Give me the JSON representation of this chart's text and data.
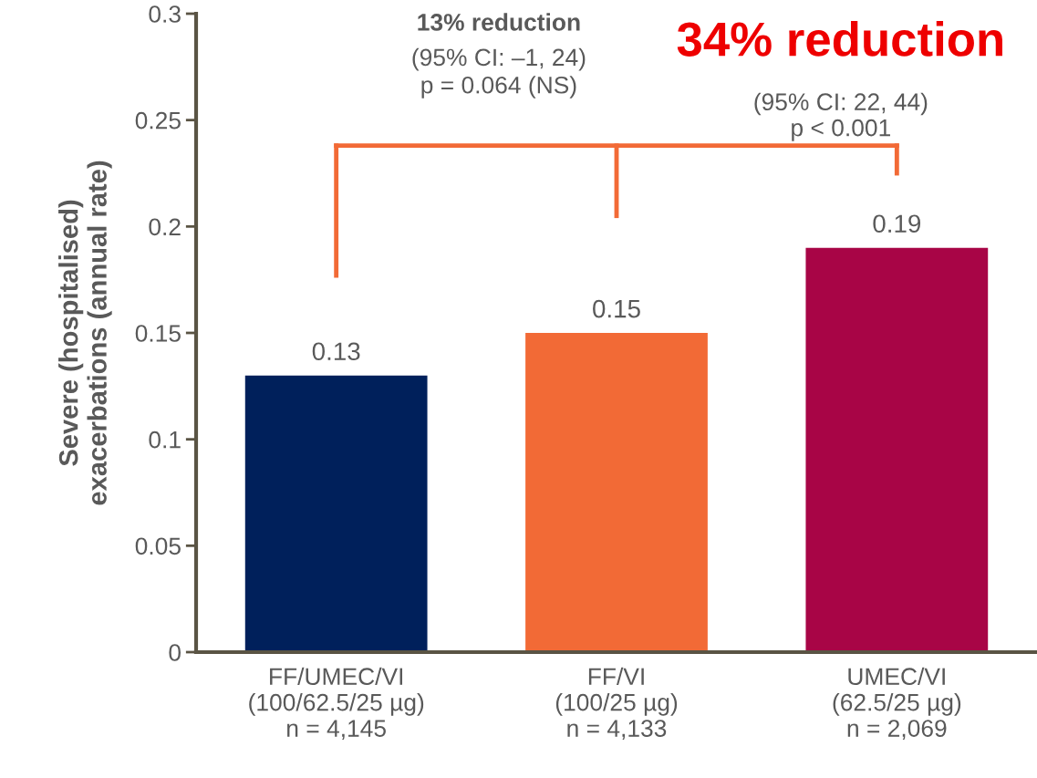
{
  "chart_data": {
    "type": "bar",
    "ylabel": "Severe (hospitalised)\nexacerbations (annual rate)",
    "categories": [
      "FF/UMEC/VI\n(100/62.5/25 µg)\nn = 4,145",
      "FF/VI\n(100/25 µg)\nn = 4,133",
      "UMEC/VI\n(62.5/25 µg)\nn = 2,069"
    ],
    "values": [
      0.13,
      0.15,
      0.19
    ],
    "colors": [
      "#00205b",
      "#f26a36",
      "#a80546"
    ],
    "data_labels": true,
    "ylim": [
      0,
      0.3
    ],
    "yticks": [
      0,
      0.05,
      0.1,
      0.15,
      0.2,
      0.25,
      0.3
    ],
    "grid": false,
    "annotations": [
      "13% reduction",
      "(95% CI: –1, 24)\np = 0.064 (NS)",
      "34% reduction",
      "(95% CI: 22, 44)\np < 0.001"
    ]
  }
}
